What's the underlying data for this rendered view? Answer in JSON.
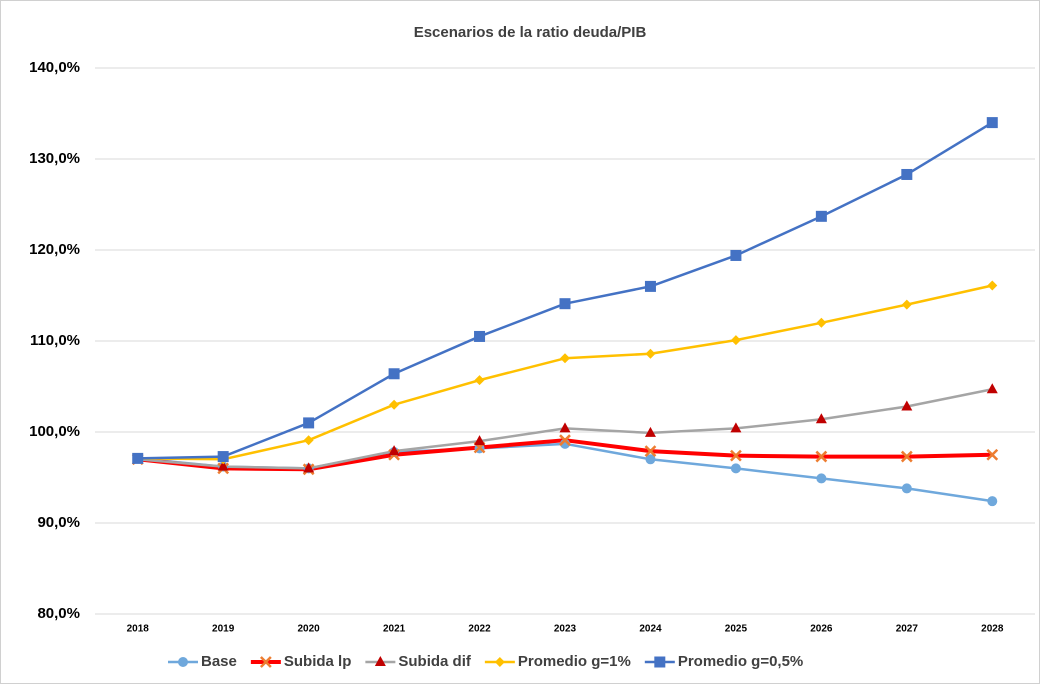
{
  "chart_data": {
    "type": "line",
    "title": "Escenarios de la ratio deuda/PIB",
    "categories": [
      "2018",
      "2019",
      "2020",
      "2021",
      "2022",
      "2023",
      "2024",
      "2025",
      "2026",
      "2027",
      "2028"
    ],
    "series": [
      {
        "name": "Base",
        "color": "#6fa8dc",
        "marker": "circle",
        "values": [
          97.1,
          96.2,
          96.0,
          97.8,
          98.2,
          98.7,
          97.0,
          96.0,
          94.9,
          93.8,
          92.4
        ]
      },
      {
        "name": "Subida lp",
        "color": "#ff0000",
        "marker": "x",
        "values": [
          97.0,
          96.0,
          95.9,
          97.5,
          98.3,
          99.1,
          97.9,
          97.4,
          97.3,
          97.3,
          97.5
        ]
      },
      {
        "name": "Subida dif",
        "color": "#a5a5a5",
        "marker": "triangle",
        "values": [
          97.0,
          96.2,
          96.0,
          97.9,
          99.0,
          100.4,
          99.9,
          100.4,
          101.4,
          102.8,
          104.7
        ]
      },
      {
        "name": "Promedio g=1%",
        "color": "#ffc000",
        "marker": "diamond",
        "values": [
          97.1,
          97.0,
          99.1,
          103.0,
          105.7,
          108.1,
          108.6,
          110.1,
          112.0,
          114.0,
          116.1
        ]
      },
      {
        "name": "Promedio g=0,5%",
        "color": "#4472c4",
        "marker": "square",
        "values": [
          97.1,
          97.3,
          101.0,
          106.4,
          110.5,
          114.1,
          116.0,
          119.4,
          123.7,
          128.3,
          134.0
        ]
      }
    ],
    "ylim": [
      80,
      140
    ],
    "yticks": [
      {
        "value": 80,
        "label": "80,0%"
      },
      {
        "value": 90,
        "label": "90,0%"
      },
      {
        "value": 100,
        "label": "100,0%"
      },
      {
        "value": 110,
        "label": "110,0%"
      },
      {
        "value": 120,
        "label": "120,0%"
      },
      {
        "value": 130,
        "label": "130,0%"
      },
      {
        "value": 140,
        "label": "140,0%"
      }
    ],
    "grid": true,
    "legend": "bottom"
  }
}
